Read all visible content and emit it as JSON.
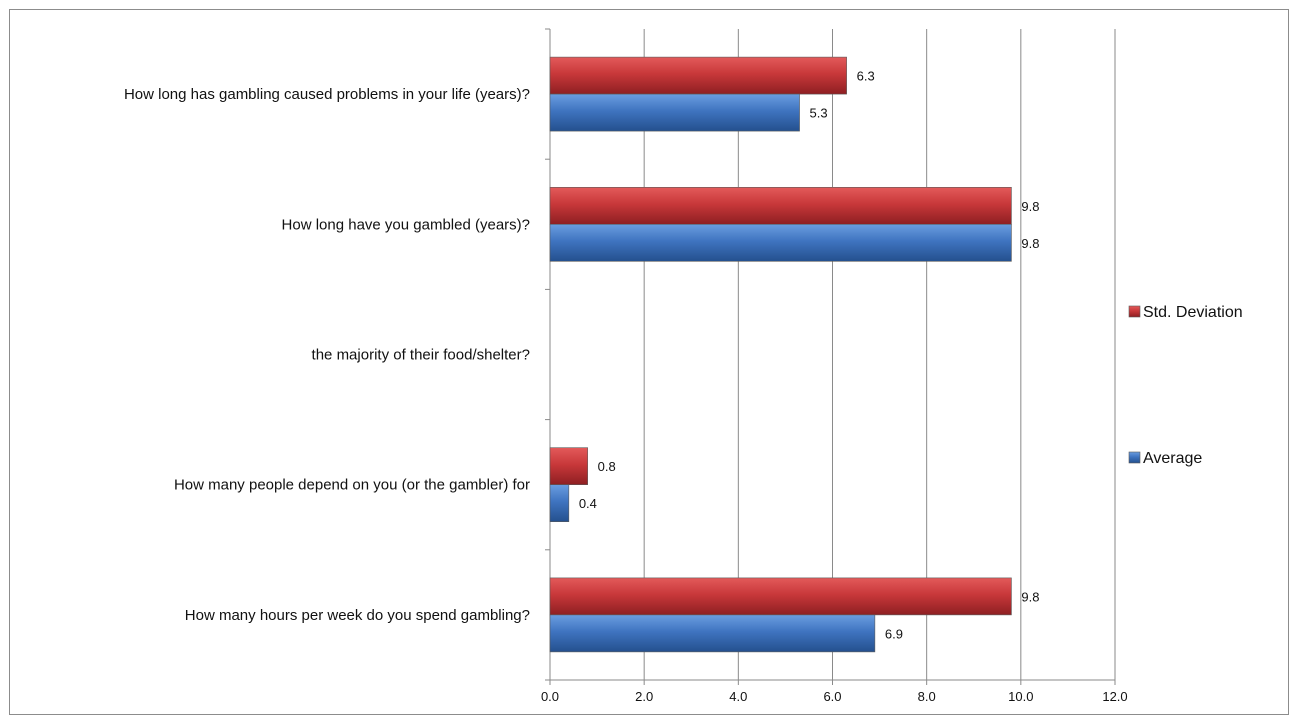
{
  "chart_data": {
    "type": "bar",
    "orientation": "horizontal",
    "categories": [
      "How long has gambling caused problems in your life (years)?",
      "How long have you gambled (years)?",
      "the majority of their food/shelter?",
      "How many people depend on you (or the gambler) for",
      "How many hours per week do you spend gambling?"
    ],
    "series": [
      {
        "name": "Std. Deviation",
        "color": "#c0393b",
        "values": [
          6.3,
          9.8,
          null,
          0.8,
          9.8
        ]
      },
      {
        "name": "Average",
        "color": "#3f74c0",
        "values": [
          5.3,
          9.8,
          null,
          0.4,
          6.9
        ]
      }
    ],
    "xlim": [
      0,
      12
    ],
    "xticks": [
      "0.0",
      "2.0",
      "4.0",
      "6.0",
      "8.0",
      "10.0",
      "12.0"
    ],
    "grid": "vertical",
    "legend": "right"
  }
}
